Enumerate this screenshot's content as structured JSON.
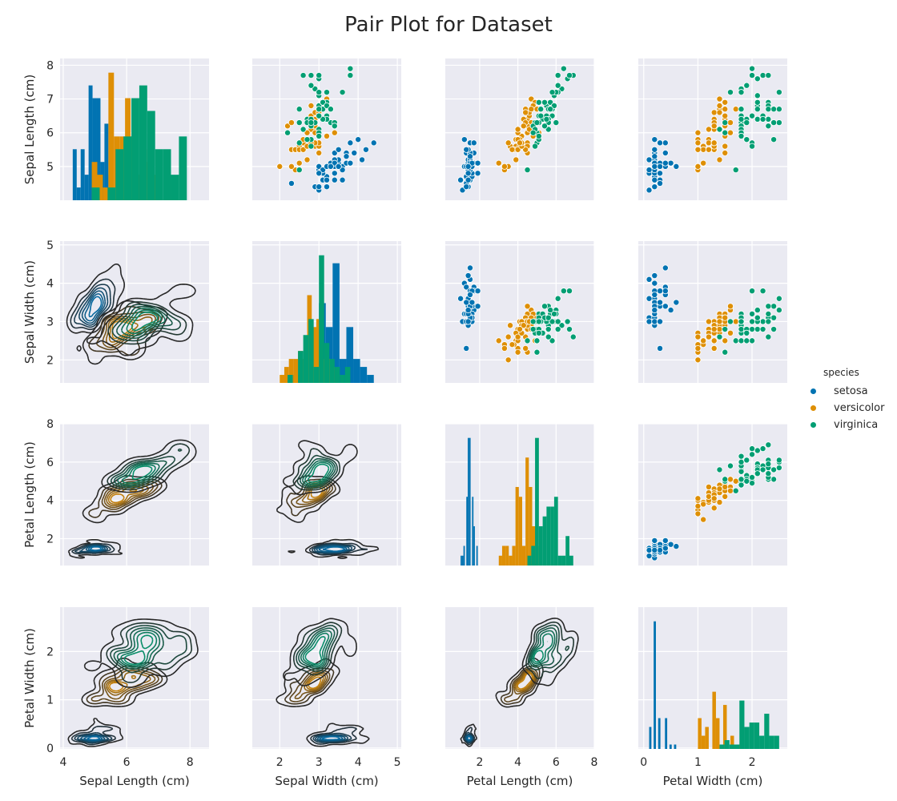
{
  "title": "Pair Plot for Dataset",
  "legend": {
    "title": "species",
    "items": [
      {
        "label": "setosa",
        "color": "#0173b2"
      },
      {
        "label": "versicolor",
        "color": "#de8f05"
      },
      {
        "label": "virginica",
        "color": "#029e73"
      }
    ]
  },
  "chart_data": {
    "type": "scatter",
    "subtype": "pairplot",
    "title": "Pair Plot for Dataset",
    "style": "darkgrid",
    "diagonal": "histogram (stacked by species)",
    "upper": "scatter",
    "lower": "kde contours",
    "variables": [
      {
        "label": "Sepal Length (cm)",
        "lim": [
          3.9,
          8.6
        ],
        "ticks": [
          4,
          6,
          8
        ],
        "ylim": [
          4.0,
          8.2
        ],
        "yticks": [
          5,
          6,
          7,
          8
        ]
      },
      {
        "label": "Sepal Width (cm)",
        "lim": [
          1.3,
          5.1
        ],
        "ticks": [
          2,
          3,
          4,
          5
        ],
        "ylim": [
          1.4,
          5.1
        ],
        "yticks": [
          2,
          3,
          4,
          5
        ]
      },
      {
        "label": "Petal Length (cm)",
        "lim": [
          0.2,
          8.0
        ],
        "ticks": [
          2,
          4,
          6,
          8
        ],
        "ylim": [
          0.6,
          8.0
        ],
        "yticks": [
          2,
          4,
          6,
          8
        ]
      },
      {
        "label": "Petal Width (cm)",
        "lim": [
          -0.1,
          2.65
        ],
        "ticks": [
          0,
          1,
          2
        ],
        "ylim": [
          -0.02,
          2.92
        ],
        "yticks": [
          0,
          1,
          2
        ]
      }
    ],
    "series": [
      {
        "name": "setosa",
        "color": "#0173b2",
        "points": [
          [
            5.1,
            3.5,
            1.4,
            0.2
          ],
          [
            4.9,
            3.0,
            1.4,
            0.2
          ],
          [
            4.7,
            3.2,
            1.3,
            0.2
          ],
          [
            4.6,
            3.1,
            1.5,
            0.2
          ],
          [
            5.0,
            3.6,
            1.4,
            0.2
          ],
          [
            5.4,
            3.9,
            1.7,
            0.4
          ],
          [
            4.6,
            3.4,
            1.4,
            0.3
          ],
          [
            5.0,
            3.4,
            1.5,
            0.2
          ],
          [
            4.4,
            2.9,
            1.4,
            0.2
          ],
          [
            4.9,
            3.1,
            1.5,
            0.1
          ],
          [
            5.4,
            3.7,
            1.5,
            0.2
          ],
          [
            4.8,
            3.4,
            1.6,
            0.2
          ],
          [
            4.8,
            3.0,
            1.4,
            0.1
          ],
          [
            4.3,
            3.0,
            1.1,
            0.1
          ],
          [
            5.8,
            4.0,
            1.2,
            0.2
          ],
          [
            5.7,
            4.4,
            1.5,
            0.4
          ],
          [
            5.4,
            3.9,
            1.3,
            0.4
          ],
          [
            5.1,
            3.5,
            1.4,
            0.3
          ],
          [
            5.7,
            3.8,
            1.7,
            0.3
          ],
          [
            5.1,
            3.8,
            1.5,
            0.3
          ],
          [
            5.4,
            3.4,
            1.7,
            0.2
          ],
          [
            5.1,
            3.7,
            1.5,
            0.4
          ],
          [
            4.6,
            3.6,
            1.0,
            0.2
          ],
          [
            5.1,
            3.3,
            1.7,
            0.5
          ],
          [
            4.8,
            3.4,
            1.9,
            0.2
          ],
          [
            5.0,
            3.0,
            1.6,
            0.2
          ],
          [
            5.0,
            3.4,
            1.6,
            0.4
          ],
          [
            5.2,
            3.5,
            1.5,
            0.2
          ],
          [
            5.2,
            3.4,
            1.4,
            0.2
          ],
          [
            4.7,
            3.2,
            1.6,
            0.2
          ],
          [
            4.8,
            3.1,
            1.6,
            0.2
          ],
          [
            5.4,
            3.4,
            1.5,
            0.4
          ],
          [
            5.2,
            4.1,
            1.5,
            0.1
          ],
          [
            5.5,
            4.2,
            1.4,
            0.2
          ],
          [
            4.9,
            3.1,
            1.5,
            0.2
          ],
          [
            5.0,
            3.2,
            1.2,
            0.2
          ],
          [
            5.5,
            3.5,
            1.3,
            0.2
          ],
          [
            4.9,
            3.6,
            1.4,
            0.1
          ],
          [
            4.4,
            3.0,
            1.3,
            0.2
          ],
          [
            5.1,
            3.4,
            1.5,
            0.2
          ],
          [
            5.0,
            3.5,
            1.3,
            0.3
          ],
          [
            4.5,
            2.3,
            1.3,
            0.3
          ],
          [
            4.4,
            3.2,
            1.3,
            0.2
          ],
          [
            5.0,
            3.5,
            1.6,
            0.6
          ],
          [
            5.1,
            3.8,
            1.9,
            0.4
          ],
          [
            4.8,
            3.0,
            1.4,
            0.3
          ],
          [
            5.1,
            3.8,
            1.6,
            0.2
          ],
          [
            4.6,
            3.2,
            1.4,
            0.2
          ],
          [
            5.3,
            3.7,
            1.5,
            0.2
          ],
          [
            5.0,
            3.3,
            1.4,
            0.2
          ]
        ]
      },
      {
        "name": "versicolor",
        "color": "#de8f05",
        "points": [
          [
            7.0,
            3.2,
            4.7,
            1.4
          ],
          [
            6.4,
            3.2,
            4.5,
            1.5
          ],
          [
            6.9,
            3.1,
            4.9,
            1.5
          ],
          [
            5.5,
            2.3,
            4.0,
            1.3
          ],
          [
            6.5,
            2.8,
            4.6,
            1.5
          ],
          [
            5.7,
            2.8,
            4.5,
            1.3
          ],
          [
            6.3,
            3.3,
            4.7,
            1.6
          ],
          [
            4.9,
            2.4,
            3.3,
            1.0
          ],
          [
            6.6,
            2.9,
            4.6,
            1.3
          ],
          [
            5.2,
            2.7,
            3.9,
            1.4
          ],
          [
            5.0,
            2.0,
            3.5,
            1.0
          ],
          [
            5.9,
            3.0,
            4.2,
            1.5
          ],
          [
            6.0,
            2.2,
            4.0,
            1.0
          ],
          [
            6.1,
            2.9,
            4.7,
            1.4
          ],
          [
            5.6,
            2.9,
            3.6,
            1.3
          ],
          [
            6.7,
            3.1,
            4.4,
            1.4
          ],
          [
            5.6,
            3.0,
            4.5,
            1.5
          ],
          [
            5.8,
            2.7,
            4.1,
            1.0
          ],
          [
            6.2,
            2.2,
            4.5,
            1.5
          ],
          [
            5.6,
            2.5,
            3.9,
            1.1
          ],
          [
            5.9,
            3.2,
            4.8,
            1.8
          ],
          [
            6.1,
            2.8,
            4.0,
            1.3
          ],
          [
            6.3,
            2.5,
            4.9,
            1.5
          ],
          [
            6.1,
            2.8,
            4.7,
            1.2
          ],
          [
            6.4,
            2.9,
            4.3,
            1.3
          ],
          [
            6.6,
            3.0,
            4.4,
            1.4
          ],
          [
            6.8,
            2.8,
            4.8,
            1.4
          ],
          [
            6.7,
            3.0,
            5.0,
            1.7
          ],
          [
            6.0,
            2.9,
            4.5,
            1.5
          ],
          [
            5.7,
            2.6,
            3.5,
            1.0
          ],
          [
            5.5,
            2.4,
            3.8,
            1.1
          ],
          [
            5.5,
            2.4,
            3.7,
            1.0
          ],
          [
            5.8,
            2.7,
            3.9,
            1.2
          ],
          [
            6.0,
            2.7,
            5.1,
            1.6
          ],
          [
            5.4,
            3.0,
            4.5,
            1.5
          ],
          [
            6.0,
            3.4,
            4.5,
            1.6
          ],
          [
            6.7,
            3.1,
            4.7,
            1.5
          ],
          [
            6.3,
            2.3,
            4.4,
            1.3
          ],
          [
            5.6,
            3.0,
            4.1,
            1.3
          ],
          [
            5.5,
            2.5,
            4.0,
            1.3
          ],
          [
            5.5,
            2.6,
            4.4,
            1.2
          ],
          [
            6.1,
            3.0,
            4.6,
            1.4
          ],
          [
            5.8,
            2.6,
            4.0,
            1.2
          ],
          [
            5.0,
            2.3,
            3.3,
            1.0
          ],
          [
            5.6,
            2.7,
            4.2,
            1.3
          ],
          [
            5.7,
            3.0,
            4.2,
            1.2
          ],
          [
            5.7,
            2.9,
            4.2,
            1.3
          ],
          [
            6.2,
            2.9,
            4.3,
            1.3
          ],
          [
            5.1,
            2.5,
            3.0,
            1.1
          ],
          [
            5.7,
            2.8,
            4.1,
            1.3
          ]
        ]
      },
      {
        "name": "virginica",
        "color": "#029e73",
        "points": [
          [
            6.3,
            3.3,
            6.0,
            2.5
          ],
          [
            5.8,
            2.7,
            5.1,
            1.9
          ],
          [
            7.1,
            3.0,
            5.9,
            2.1
          ],
          [
            6.3,
            2.9,
            5.6,
            1.8
          ],
          [
            6.5,
            3.0,
            5.8,
            2.2
          ],
          [
            7.6,
            3.0,
            6.6,
            2.1
          ],
          [
            4.9,
            2.5,
            4.5,
            1.7
          ],
          [
            7.3,
            2.9,
            6.3,
            1.8
          ],
          [
            6.7,
            2.5,
            5.8,
            1.8
          ],
          [
            7.2,
            3.6,
            6.1,
            2.5
          ],
          [
            6.5,
            3.2,
            5.1,
            2.0
          ],
          [
            6.4,
            2.7,
            5.3,
            1.9
          ],
          [
            6.8,
            3.0,
            5.5,
            2.1
          ],
          [
            5.7,
            2.5,
            5.0,
            2.0
          ],
          [
            5.8,
            2.8,
            5.1,
            2.4
          ],
          [
            6.4,
            3.2,
            5.3,
            2.3
          ],
          [
            6.5,
            3.0,
            5.5,
            1.8
          ],
          [
            7.7,
            3.8,
            6.7,
            2.2
          ],
          [
            7.7,
            2.6,
            6.9,
            2.3
          ],
          [
            6.0,
            2.2,
            5.0,
            1.5
          ],
          [
            6.9,
            3.2,
            5.7,
            2.3
          ],
          [
            5.6,
            2.8,
            4.9,
            2.0
          ],
          [
            7.7,
            2.8,
            6.7,
            2.0
          ],
          [
            6.3,
            2.7,
            4.9,
            1.8
          ],
          [
            6.7,
            3.3,
            5.7,
            2.1
          ],
          [
            7.2,
            3.2,
            6.0,
            1.8
          ],
          [
            6.2,
            2.8,
            4.8,
            1.8
          ],
          [
            6.1,
            3.0,
            4.9,
            1.8
          ],
          [
            6.4,
            2.8,
            5.6,
            2.1
          ],
          [
            7.2,
            3.0,
            5.8,
            1.6
          ],
          [
            7.4,
            2.8,
            6.1,
            1.9
          ],
          [
            7.9,
            3.8,
            6.4,
            2.0
          ],
          [
            6.4,
            2.8,
            5.6,
            2.2
          ],
          [
            6.3,
            2.8,
            5.1,
            1.5
          ],
          [
            6.1,
            2.6,
            5.6,
            1.4
          ],
          [
            7.7,
            3.0,
            6.1,
            2.3
          ],
          [
            6.3,
            3.4,
            5.6,
            2.4
          ],
          [
            6.4,
            3.1,
            5.5,
            1.8
          ],
          [
            6.0,
            3.0,
            4.8,
            1.8
          ],
          [
            6.9,
            3.1,
            5.4,
            2.1
          ],
          [
            6.7,
            3.1,
            5.6,
            2.4
          ],
          [
            6.9,
            3.1,
            5.1,
            2.3
          ],
          [
            5.8,
            2.7,
            5.1,
            1.9
          ],
          [
            6.8,
            3.2,
            5.9,
            2.3
          ],
          [
            6.7,
            3.3,
            5.7,
            2.5
          ],
          [
            6.7,
            3.0,
            5.2,
            2.3
          ],
          [
            6.3,
            2.5,
            5.0,
            1.9
          ],
          [
            6.5,
            3.0,
            5.2,
            2.0
          ],
          [
            6.2,
            3.4,
            5.4,
            2.3
          ],
          [
            5.9,
            3.0,
            5.1,
            1.8
          ]
        ]
      }
    ]
  }
}
